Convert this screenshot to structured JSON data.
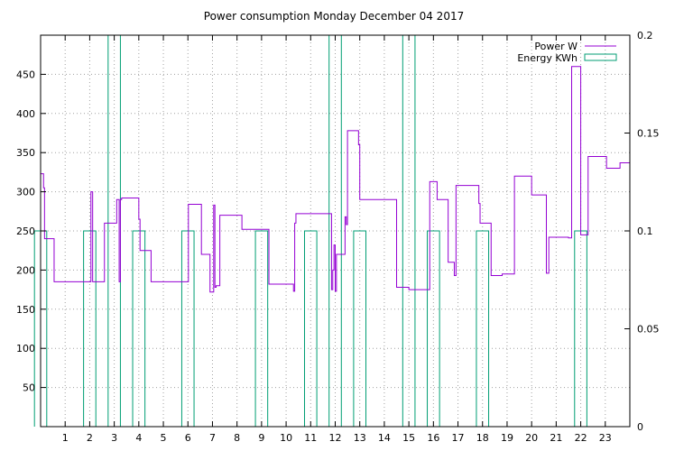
{
  "chart_data": {
    "type": "line",
    "title": "Power consumption Monday December 04 2017",
    "xlim": [
      0,
      24
    ],
    "x_ticks": [
      1,
      2,
      3,
      4,
      5,
      6,
      7,
      8,
      9,
      10,
      11,
      12,
      13,
      14,
      15,
      16,
      17,
      18,
      19,
      20,
      21,
      22,
      23
    ],
    "ylim": [
      0,
      500
    ],
    "y_ticks": [
      50,
      100,
      150,
      200,
      250,
      300,
      350,
      400,
      450
    ],
    "y2lim": [
      0,
      0.2
    ],
    "y2_ticks": [
      0,
      0.05,
      0.1,
      0.15,
      0.2
    ],
    "y2_tick_labels": [
      "0",
      "0.05",
      "0.1",
      "0.15",
      "0.2"
    ],
    "grid": true,
    "legend_position": "top-right",
    "colors": {
      "power": "#9400d3",
      "energy": "#009e73"
    },
    "series": [
      {
        "name": "Power W",
        "axis": "left",
        "style": "step",
        "x": [
          0,
          0.12,
          0.16,
          0.55,
          2.0,
          2.05,
          2.12,
          2.15,
          2.6,
          3.0,
          3.1,
          3.2,
          3.25,
          3.3,
          3.35,
          3.85,
          4.0,
          4.05,
          4.35,
          4.5,
          5.5,
          5.95,
          6.0,
          6.02,
          6.5,
          6.55,
          6.85,
          6.9,
          7.0,
          7.05,
          7.1,
          7.15,
          7.3,
          8.1,
          8.2,
          9.3,
          9.8,
          10.3,
          10.35,
          10.4,
          11.85,
          11.9,
          11.95,
          12.0,
          12.05,
          12.4,
          12.45,
          12.5,
          12.9,
          12.95,
          13.0,
          14.5,
          15.0,
          15.4,
          15.85,
          15.9,
          16.15,
          16.6,
          16.85,
          16.88,
          16.92,
          17.85,
          17.9,
          18.35,
          18.8,
          19.3,
          19.35,
          20.0,
          20.6,
          20.7,
          21.5,
          21.6,
          21.63,
          22.0,
          22.3,
          22.5,
          23.05,
          23.55,
          23.6,
          24.0
        ],
        "y": [
          323,
          305,
          240,
          185,
          185,
          300,
          185,
          185,
          260,
          260,
          290,
          185,
          290,
          292,
          292,
          292,
          265,
          225,
          225,
          185,
          185,
          185,
          185,
          284,
          284,
          220,
          220,
          172,
          172,
          283,
          178,
          180,
          270,
          270,
          252,
          182,
          182,
          173,
          260,
          272,
          175,
          200,
          232,
          173,
          220,
          268,
          258,
          378,
          378,
          360,
          290,
          178,
          175,
          175,
          313,
          313,
          290,
          210,
          193,
          193,
          308,
          285,
          260,
          193,
          195,
          320,
          320,
          296,
          196,
          242,
          241,
          241,
          460,
          245,
          345,
          345,
          330,
          330,
          337,
          243
        ]
      },
      {
        "name": "Energy KWh",
        "axis": "right",
        "style": "boxes",
        "x": [
          0,
          1,
          2,
          3,
          4,
          5,
          6,
          7,
          8,
          9,
          10,
          11,
          12,
          13,
          14,
          15,
          16,
          17,
          18,
          19,
          20,
          21,
          22,
          23
        ],
        "values": [
          0.1,
          0,
          0.1,
          0.2,
          0.1,
          0,
          0.1,
          0,
          0,
          0.1,
          0,
          0.1,
          0.2,
          0.1,
          0,
          0.2,
          0.1,
          0,
          0.1,
          0,
          0,
          0,
          0.1,
          0
        ],
        "box_width": 0.5
      }
    ]
  }
}
